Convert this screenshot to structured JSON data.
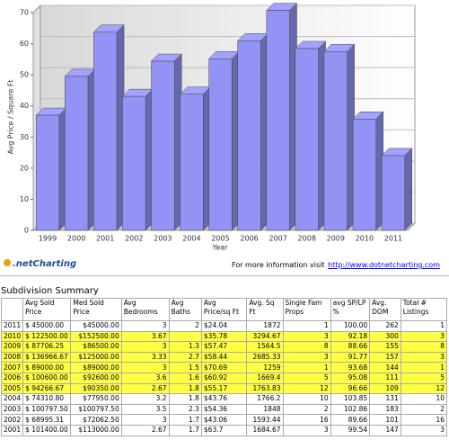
{
  "chart_data": {
    "type": "bar3d",
    "y_label": "Avg Price / Square Ft",
    "x_label": "Year",
    "categories": [
      "1999",
      "2000",
      "2001",
      "2002",
      "2003",
      "2004",
      "2005",
      "2006",
      "2007",
      "2008",
      "2009",
      "2010",
      "2011"
    ],
    "values": [
      37,
      49.5,
      63.7,
      43.06,
      54.36,
      43.76,
      55.17,
      60.92,
      70.69,
      58.44,
      57.47,
      35.78,
      24.04
    ],
    "color": "#9393f5",
    "ylim": [
      0,
      70
    ],
    "yticks": [
      0,
      10,
      20,
      30,
      40,
      50,
      60,
      70
    ],
    "grid": true
  },
  "footer": {
    "logo": ".netCharting",
    "text": "For more information visit",
    "link": "http://www.dotnetcharting.com"
  },
  "table": {
    "title": "Subdivision Summary",
    "highlight_color": "#ffff44",
    "header": [
      "Avg Sold Price",
      "Med Sold Price",
      "Avg Bedrooms",
      "Avg Baths",
      "Avg Price/sq Ft",
      "Avg. Sq Ft",
      "Single Fam Props",
      "avg SP/LP %",
      "Avg. DOM",
      "Total # Listings"
    ],
    "rows": [
      {
        "highlighted": false,
        "cells": [
          "2011",
          "$ 45000.00",
          "$45000.00",
          "3",
          "2",
          "$24.04",
          "1872",
          "1",
          "100.00",
          "262",
          "1"
        ]
      },
      {
        "highlighted": true,
        "cells": [
          "2010",
          "$ 122500.00",
          "$152500.00",
          "3.67",
          null,
          "$35.78",
          "3294.67",
          "3",
          "92.18",
          "300",
          "3"
        ]
      },
      {
        "highlighted": true,
        "cells": [
          "2009",
          "$ 87706.25",
          "$86500.00",
          "3",
          "1.3",
          "$57.47",
          "1564.5",
          "8",
          "88.66",
          "155",
          "8"
        ]
      },
      {
        "highlighted": true,
        "cells": [
          "2008",
          "$ 136966.67",
          "$125000.00",
          "3.33",
          "2.7",
          "$58.44",
          "2685.33",
          "3",
          "91.77",
          "157",
          "3"
        ]
      },
      {
        "highlighted": true,
        "cells": [
          "2007",
          "$ 89000.00",
          "$89000.00",
          "3",
          "1.5",
          "$70.69",
          "1259",
          "1",
          "93.68",
          "144",
          "1"
        ]
      },
      {
        "highlighted": true,
        "cells": [
          "2006",
          "$ 100600.00",
          "$92600.00",
          "3.6",
          "1.6",
          "$60.92",
          "1669.4",
          "5",
          "95.08",
          "111",
          "5"
        ]
      },
      {
        "highlighted": true,
        "cells": [
          "2005",
          "$ 94266.67",
          "$90350.00",
          "2.67",
          "1.8",
          "$55.17",
          "1763.83",
          "12",
          "96.66",
          "109",
          "12"
        ]
      },
      {
        "highlighted": false,
        "cells": [
          "2004",
          "$ 74310.80",
          "$77950.00",
          "3.2",
          "1.8",
          "$43.76",
          "1766.2",
          "10",
          "103.85",
          "131",
          "10"
        ]
      },
      {
        "highlighted": false,
        "cells": [
          "2003",
          "$ 100797.50",
          "$100797.50",
          "3.5",
          "2.3",
          "$54.36",
          "1848",
          "2",
          "102.86",
          "183",
          "2"
        ]
      },
      {
        "highlighted": false,
        "cells": [
          "2002",
          "$ 68995.31",
          "$72062.50",
          "3",
          "1.7",
          "$43.06",
          "1593.44",
          "16",
          "89.66",
          "101",
          "16"
        ]
      },
      {
        "highlighted": false,
        "cells": [
          "2001",
          "$ 101400.00",
          "$113000.00",
          "2.67",
          "1.7",
          "$63.7",
          "1684.67",
          "3",
          "99.54",
          "147",
          "3"
        ]
      }
    ]
  }
}
